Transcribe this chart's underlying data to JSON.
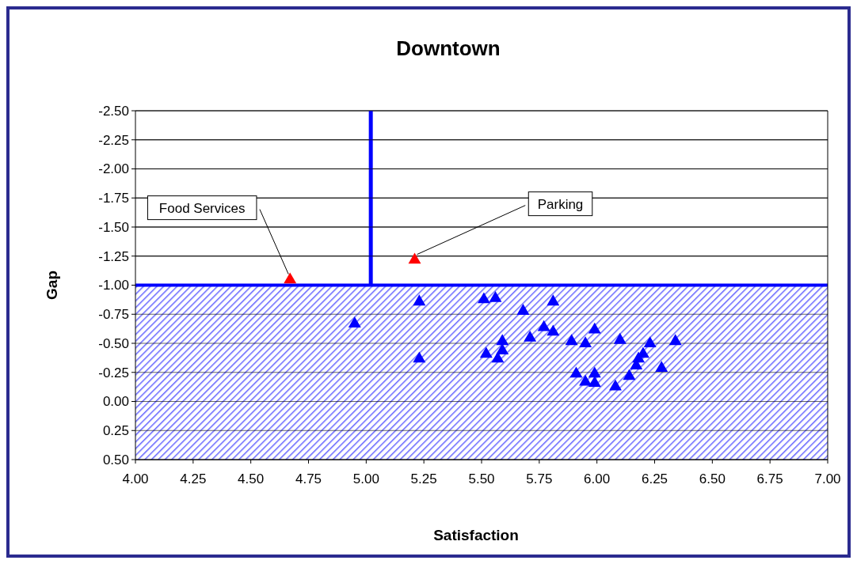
{
  "chart_data": {
    "type": "scatter",
    "title": "Downtown",
    "xlabel": "Satisfaction",
    "ylabel": "Gap",
    "xlim": [
      4,
      7
    ],
    "ylim": [
      0.5,
      -2.5
    ],
    "xticks": [
      {
        "value": 4,
        "label": "4.00"
      },
      {
        "value": 4.25,
        "label": "4.25"
      },
      {
        "value": 4.5,
        "label": "4.50"
      },
      {
        "value": 4.75,
        "label": "4.75"
      },
      {
        "value": 5,
        "label": "5.00"
      },
      {
        "value": 5.25,
        "label": "5.25"
      },
      {
        "value": 5.5,
        "label": "5.50"
      },
      {
        "value": 5.75,
        "label": "5.75"
      },
      {
        "value": 6,
        "label": "6.00"
      },
      {
        "value": 6.25,
        "label": "6.25"
      },
      {
        "value": 6.5,
        "label": "6.50"
      },
      {
        "value": 6.75,
        "label": "6.75"
      },
      {
        "value": 7,
        "label": "7.00"
      }
    ],
    "yticks": [
      {
        "value": -2.5,
        "label": "-2.50"
      },
      {
        "value": -2.25,
        "label": "-2.25"
      },
      {
        "value": -2,
        "label": "-2.00"
      },
      {
        "value": -1.75,
        "label": "-1.75"
      },
      {
        "value": -1.5,
        "label": "-1.50"
      },
      {
        "value": -1.25,
        "label": "-1.25"
      },
      {
        "value": -1,
        "label": "-1.00"
      },
      {
        "value": -0.75,
        "label": "-0.75"
      },
      {
        "value": -0.5,
        "label": "-0.50"
      },
      {
        "value": -0.25,
        "label": "-0.25"
      },
      {
        "value": 0,
        "label": "0.00"
      },
      {
        "value": 0.25,
        "label": "0.25"
      },
      {
        "value": 0.5,
        "label": "0.50"
      }
    ],
    "grid": "y",
    "marker": "triangle",
    "series": [
      {
        "color": "#0000ff",
        "x": [
          4.95,
          5.23,
          5.23,
          5.51,
          5.56,
          5.52,
          5.57,
          5.59,
          5.59,
          5.68,
          5.71,
          5.81,
          5.77,
          5.81,
          5.89,
          5.95,
          5.99,
          5.91,
          5.95,
          5.99,
          5.99,
          6.08,
          6.1,
          6.14,
          6.17,
          6.18,
          6.2,
          6.23,
          6.28,
          6.34
        ],
        "values": [
          -0.66,
          -0.85,
          -0.36,
          -0.87,
          -0.88,
          -0.4,
          -0.36,
          -0.43,
          -0.51,
          -0.77,
          -0.54,
          -0.85,
          -0.63,
          -0.59,
          -0.51,
          -0.49,
          -0.61,
          -0.23,
          -0.16,
          -0.23,
          -0.15,
          -0.12,
          -0.52,
          -0.21,
          -0.3,
          -0.36,
          -0.4,
          -0.49,
          -0.28,
          -0.51
        ]
      },
      {
        "color": "#ff0000",
        "x": [
          4.67,
          5.21
        ],
        "values": [
          -1.04,
          -1.21
        ]
      }
    ],
    "ref_lines": [
      {
        "axis": "x",
        "value": 5.02,
        "color": "#0000ff"
      },
      {
        "axis": "y",
        "value": -1,
        "color": "#0000ff"
      }
    ],
    "bands": [
      {
        "axis": "y",
        "from": -1,
        "to": 0.5,
        "color": "#6666ff"
      }
    ],
    "annotations": [
      {
        "text": "Food Services",
        "x": 4.67,
        "y": -1.04
      },
      {
        "text": "Parking",
        "x": 5.21,
        "y": -1.21
      }
    ]
  }
}
